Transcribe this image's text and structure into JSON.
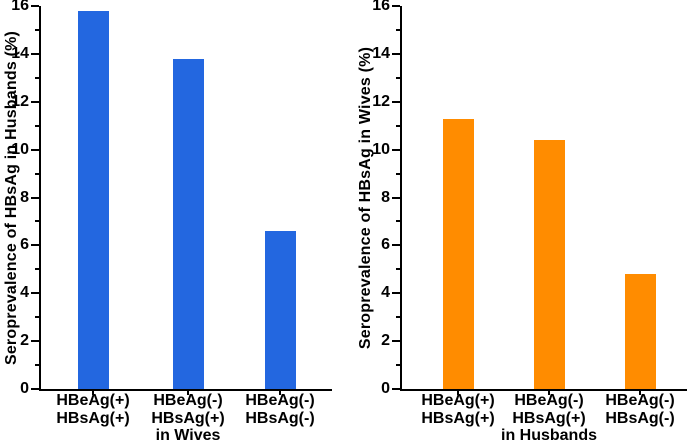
{
  "figure": {
    "background_color": "#ffffff",
    "axis_color": "#000000",
    "text_color": "#000000"
  },
  "chart_data": [
    {
      "type": "bar",
      "title": "",
      "ylabel": "Seroprevalence of HBsAg in Husbands (%)",
      "xlabel": "in Wives",
      "categories": [
        [
          "HBeAg(+)",
          "HBsAg(+)"
        ],
        [
          "HBeAg(-)",
          "HBsAg(+)"
        ],
        [
          "HBeAg(-)",
          "HBsAg(-)"
        ]
      ],
      "values": [
        15.8,
        13.8,
        6.6
      ],
      "bar_color": "#2367E0",
      "ylim": [
        0,
        16
      ],
      "ytick_step": 2,
      "ytick_labels": [
        "0",
        "2",
        "4",
        "6",
        "8",
        "10",
        "12",
        "14",
        "16"
      ],
      "minor_ticks_at_odd_values": true,
      "grid": false,
      "legend": null
    },
    {
      "type": "bar",
      "title": "",
      "ylabel": "Seroprevalence of HBsAg in Wives (%)",
      "xlabel": "in Husbands",
      "categories": [
        [
          "HBeAg(+)",
          "HBsAg(+)"
        ],
        [
          "HBeAg(-)",
          "HBsAg(+)"
        ],
        [
          "HBeAg(-)",
          "HBsAg(-)"
        ]
      ],
      "values": [
        11.3,
        10.4,
        4.8
      ],
      "bar_color": "#FF8C00",
      "ylim": [
        0,
        16
      ],
      "ytick_step": 2,
      "ytick_labels": [
        "0",
        "2",
        "4",
        "6",
        "8",
        "10",
        "12",
        "14",
        "16"
      ],
      "minor_ticks_at_odd_values": true,
      "grid": false,
      "legend": null
    }
  ]
}
